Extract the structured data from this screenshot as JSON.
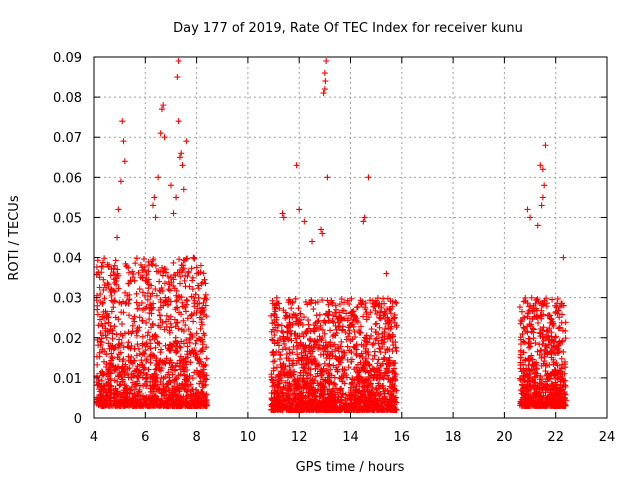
{
  "chart_data": {
    "type": "scatter",
    "title": "Day 177 of 2019, Rate Of TEC Index for receiver kunu",
    "xlabel": "GPS time / hours",
    "ylabel": "ROTI / TECUs",
    "xlim": [
      4,
      24
    ],
    "ylim": [
      0,
      0.09
    ],
    "xticks": [
      "4",
      "6",
      "8",
      "10",
      "12",
      "14",
      "16",
      "18",
      "20",
      "22",
      "24"
    ],
    "yticks": [
      "0",
      "0.01",
      "0.02",
      "0.03",
      "0.04",
      "0.05",
      "0.06",
      "0.07",
      "0.08",
      "0.09"
    ],
    "grid": true,
    "marker": "+",
    "color": "#ff0000",
    "clusters": [
      {
        "x_range": [
          4.1,
          8.4
        ],
        "y_range": [
          0.003,
          0.04
        ],
        "count": 1400
      },
      {
        "x_range": [
          10.9,
          15.8
        ],
        "y_range": [
          0.002,
          0.03
        ],
        "count": 1800
      },
      {
        "x_range": [
          20.6,
          22.4
        ],
        "y_range": [
          0.003,
          0.03
        ],
        "count": 700
      }
    ],
    "outliers": [
      {
        "x": 4.95,
        "y": 0.052
      },
      {
        "x": 5.05,
        "y": 0.059
      },
      {
        "x": 5.1,
        "y": 0.074
      },
      {
        "x": 5.15,
        "y": 0.069
      },
      {
        "x": 5.2,
        "y": 0.064
      },
      {
        "x": 4.9,
        "y": 0.045
      },
      {
        "x": 6.3,
        "y": 0.053
      },
      {
        "x": 6.35,
        "y": 0.055
      },
      {
        "x": 6.4,
        "y": 0.05
      },
      {
        "x": 6.5,
        "y": 0.06
      },
      {
        "x": 6.6,
        "y": 0.071
      },
      {
        "x": 6.65,
        "y": 0.077
      },
      {
        "x": 6.7,
        "y": 0.078
      },
      {
        "x": 6.75,
        "y": 0.07
      },
      {
        "x": 7.0,
        "y": 0.058
      },
      {
        "x": 7.1,
        "y": 0.051
      },
      {
        "x": 7.2,
        "y": 0.055
      },
      {
        "x": 7.25,
        "y": 0.085
      },
      {
        "x": 7.3,
        "y": 0.089
      },
      {
        "x": 7.35,
        "y": 0.065
      },
      {
        "x": 7.4,
        "y": 0.066
      },
      {
        "x": 7.3,
        "y": 0.074
      },
      {
        "x": 7.45,
        "y": 0.063
      },
      {
        "x": 7.5,
        "y": 0.057
      },
      {
        "x": 7.6,
        "y": 0.069
      },
      {
        "x": 11.35,
        "y": 0.051
      },
      {
        "x": 11.4,
        "y": 0.05
      },
      {
        "x": 11.9,
        "y": 0.063
      },
      {
        "x": 12.0,
        "y": 0.052
      },
      {
        "x": 12.2,
        "y": 0.049
      },
      {
        "x": 12.5,
        "y": 0.044
      },
      {
        "x": 12.85,
        "y": 0.047
      },
      {
        "x": 12.9,
        "y": 0.046
      },
      {
        "x": 12.95,
        "y": 0.081
      },
      {
        "x": 13.0,
        "y": 0.082
      },
      {
        "x": 13.02,
        "y": 0.084
      },
      {
        "x": 13.0,
        "y": 0.086
      },
      {
        "x": 13.05,
        "y": 0.089
      },
      {
        "x": 13.1,
        "y": 0.06
      },
      {
        "x": 14.5,
        "y": 0.049
      },
      {
        "x": 14.55,
        "y": 0.05
      },
      {
        "x": 14.7,
        "y": 0.06
      },
      {
        "x": 15.4,
        "y": 0.036
      },
      {
        "x": 20.9,
        "y": 0.052
      },
      {
        "x": 21.0,
        "y": 0.05
      },
      {
        "x": 21.3,
        "y": 0.048
      },
      {
        "x": 21.4,
        "y": 0.063
      },
      {
        "x": 21.5,
        "y": 0.062
      },
      {
        "x": 21.6,
        "y": 0.068
      },
      {
        "x": 21.55,
        "y": 0.058
      },
      {
        "x": 21.5,
        "y": 0.055
      },
      {
        "x": 21.45,
        "y": 0.053
      },
      {
        "x": 22.3,
        "y": 0.04
      }
    ]
  }
}
